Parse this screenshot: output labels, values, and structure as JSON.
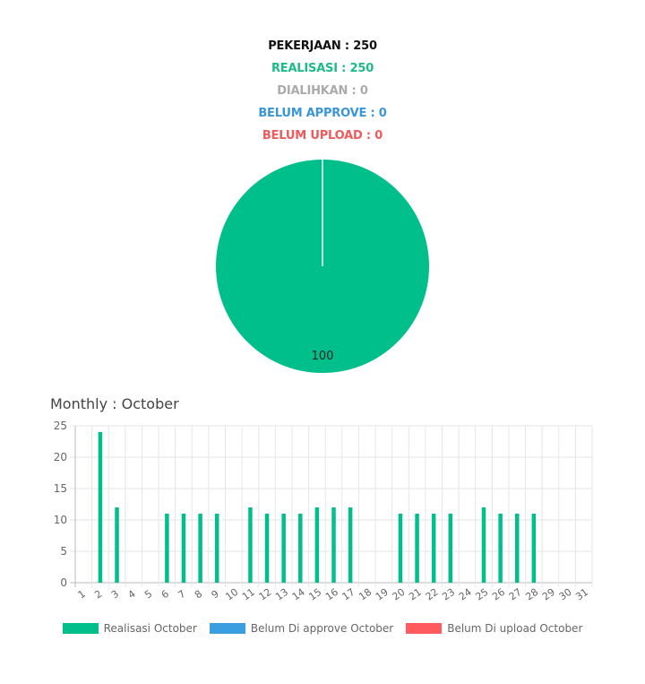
{
  "summary": [
    {
      "text": "PEKERJAAN : 250",
      "color": "#111111"
    },
    {
      "text": "REALISASI : 250",
      "color": "#1dbb86"
    },
    {
      "text": "DIALIHKAN : 0",
      "color": "#aaaaaa"
    },
    {
      "text": "BELUM APPROVE : 0",
      "color": "#3a96d8"
    },
    {
      "text": "BELUM UPLOAD : 0",
      "color": "#f05a5a"
    }
  ],
  "pie_chart": {
    "type": "pie",
    "slices": [
      {
        "value": 100,
        "label": "100",
        "color": "#00bf8a"
      }
    ]
  },
  "monthly": {
    "title": "Monthly : October"
  },
  "chart_data": {
    "type": "bar",
    "categories": [
      "1",
      "2",
      "3",
      "4",
      "5",
      "6",
      "7",
      "8",
      "9",
      "10",
      "11",
      "12",
      "13",
      "14",
      "15",
      "16",
      "17",
      "18",
      "19",
      "20",
      "21",
      "22",
      "23",
      "24",
      "25",
      "26",
      "27",
      "28",
      "29",
      "30",
      "31"
    ],
    "series": [
      {
        "name": "Realisasi October",
        "color": "#00bf8a",
        "values": [
          0,
          24,
          12,
          0,
          0,
          11,
          11,
          11,
          11,
          0,
          12,
          11,
          11,
          11,
          12,
          12,
          12,
          0,
          0,
          11,
          11,
          11,
          11,
          0,
          12,
          11,
          11,
          11,
          0,
          0,
          0
        ]
      },
      {
        "name": "Belum Di approve October",
        "color": "#3a9ee0",
        "values": [
          0,
          0,
          0,
          0,
          0,
          0,
          0,
          0,
          0,
          0,
          0,
          0,
          0,
          0,
          0,
          0,
          0,
          0,
          0,
          0,
          0,
          0,
          0,
          0,
          0,
          0,
          0,
          0,
          0,
          0,
          0
        ]
      },
      {
        "name": "Belum Di upload October",
        "color": "#ff5a5e",
        "values": [
          0,
          0,
          0,
          0,
          0,
          0,
          0,
          0,
          0,
          0,
          0,
          0,
          0,
          0,
          0,
          0,
          0,
          0,
          0,
          0,
          0,
          0,
          0,
          0,
          0,
          0,
          0,
          0,
          0,
          0,
          0
        ]
      }
    ],
    "ylim": [
      0,
      25
    ],
    "yticks": [
      0,
      5,
      10,
      15,
      20,
      25
    ],
    "grid": true,
    "legend": "bottom"
  }
}
